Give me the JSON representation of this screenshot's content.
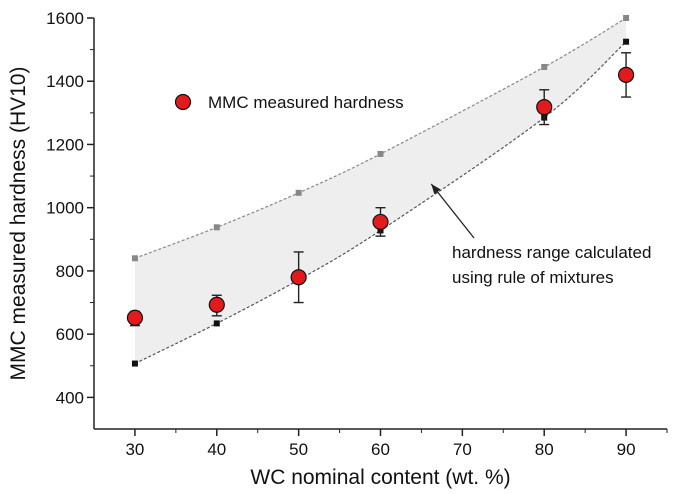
{
  "chart_data": {
    "type": "scatter",
    "title": "",
    "xlabel": "WC nominal content (wt. %)",
    "ylabel": "MMC measured hardness (HV10)",
    "xlim": [
      25,
      95
    ],
    "ylim": [
      300,
      1600
    ],
    "x_ticks": [
      "30",
      "40",
      "50",
      "60",
      "70",
      "80",
      "90"
    ],
    "y_ticks": [
      "400",
      "600",
      "800",
      "1000",
      "1200",
      "1400",
      "1600"
    ],
    "grid": false,
    "legend_position": "top-left",
    "series": [
      {
        "name": "MMC measured hardness",
        "kind": "scatter-errorbar",
        "color": "#e31a1c",
        "x": [
          30,
          40,
          50,
          60,
          80,
          90
        ],
        "y": [
          652,
          693,
          780,
          955,
          1318,
          1420
        ],
        "yerr_low": [
          25,
          35,
          80,
          45,
          55,
          70
        ],
        "yerr_high": [
          20,
          30,
          80,
          45,
          55,
          70
        ]
      },
      {
        "name": "",
        "kind": "upper-bound-line",
        "color": "#888888",
        "x": [
          30,
          40,
          50,
          60,
          80,
          90
        ],
        "y": [
          840,
          938,
          1047,
          1170,
          1445,
          1600
        ]
      },
      {
        "name": "",
        "kind": "lower-bound-line",
        "color": "#111111",
        "x": [
          30,
          40,
          50,
          60,
          80,
          90
        ],
        "y": [
          507,
          634,
          772,
          928,
          1285,
          1525
        ]
      }
    ],
    "shaded_band_color": "#eeeeee",
    "annotations": [
      {
        "text_lines": [
          "hardness range calculated",
          "using rule of mixtures"
        ],
        "arrow_target": [
          66.2,
          1075
        ]
      }
    ]
  }
}
